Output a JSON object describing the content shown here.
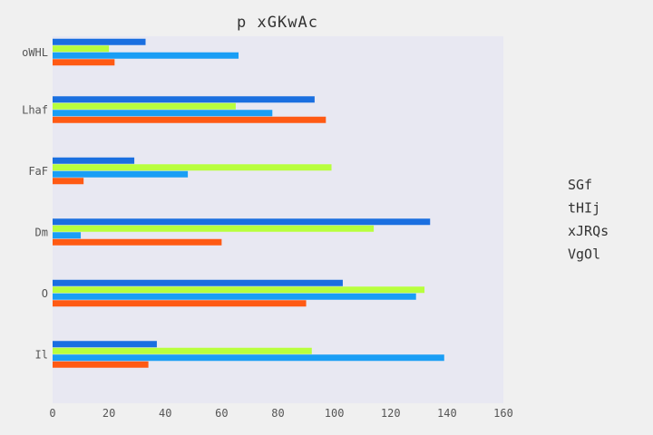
{
  "chart_data": {
    "type": "bar",
    "orientation": "horizontal",
    "title": "p  xGKwAc",
    "xlabel": "",
    "ylabel": "",
    "categories": [
      "oWHL",
      "Lhaf",
      "FaF",
      "Dm",
      "O",
      "Il"
    ],
    "xlim": [
      0,
      160
    ],
    "xticks": [
      0,
      20,
      40,
      60,
      80,
      100,
      120,
      140,
      160
    ],
    "grid": false,
    "legend_position": "right",
    "series": [
      {
        "name": "SGf",
        "color": "#1a6fe0",
        "values": [
          33,
          93,
          29,
          134,
          103,
          37
        ]
      },
      {
        "name": "tHIj",
        "color": "#b8ff3d",
        "values": [
          20,
          65,
          99,
          114,
          132,
          92
        ]
      },
      {
        "name": "xJRQs",
        "color": "#1a9ef5",
        "values": [
          66,
          78,
          48,
          10,
          129,
          139
        ]
      },
      {
        "name": "VgOl",
        "color": "#ff5a14",
        "values": [
          22,
          97,
          11,
          60,
          90,
          34
        ]
      }
    ],
    "plot_background": "#e8e8f2",
    "page_background": "#f0f0f0"
  }
}
